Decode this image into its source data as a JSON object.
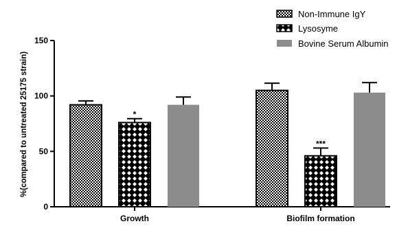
{
  "chart_data": {
    "type": "bar",
    "title": "",
    "xlabel": "",
    "ylabel": "%(compared to untreated 25175 strain)",
    "ylim": [
      0,
      150
    ],
    "yticks": [
      0,
      50,
      100,
      150
    ],
    "categories": [
      "Growth",
      "Biofilm formation"
    ],
    "legend_position": "top-right",
    "series": [
      {
        "name": "Non-Immune IgY",
        "pattern": "fine-checker",
        "color": "#000000",
        "values": [
          92,
          105
        ],
        "errors": [
          3.5,
          6.5
        ],
        "significance": [
          "",
          ""
        ]
      },
      {
        "name": "Lysosyme",
        "pattern": "diamond-lattice",
        "color": "#000000",
        "values": [
          76,
          46
        ],
        "errors": [
          3.5,
          7
        ],
        "significance": [
          "*",
          "***"
        ]
      },
      {
        "name": "Bovine Serum Albumin",
        "pattern": "solid",
        "color": "#8c8c8c",
        "values": [
          92,
          103
        ],
        "errors": [
          7,
          9
        ],
        "significance": [
          "",
          ""
        ]
      }
    ]
  }
}
